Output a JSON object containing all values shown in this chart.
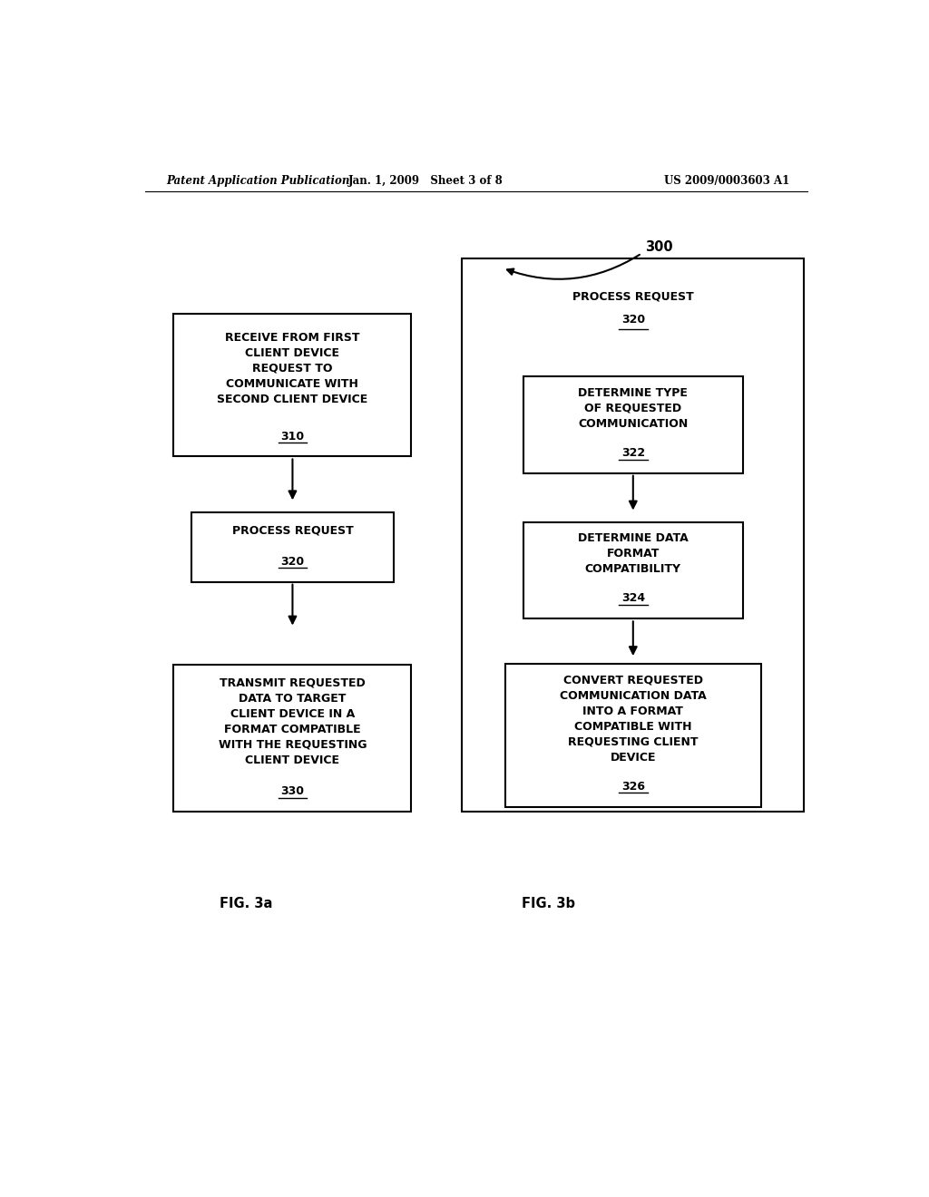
{
  "bg_color": "#ffffff",
  "header_left": "Patent Application Publication",
  "header_mid": "Jan. 1, 2009   Sheet 3 of 8",
  "header_right": "US 2009/0003603 A1",
  "fig_label_a": "FIG. 3a",
  "fig_label_b": "FIG. 3b",
  "label_300": "300"
}
